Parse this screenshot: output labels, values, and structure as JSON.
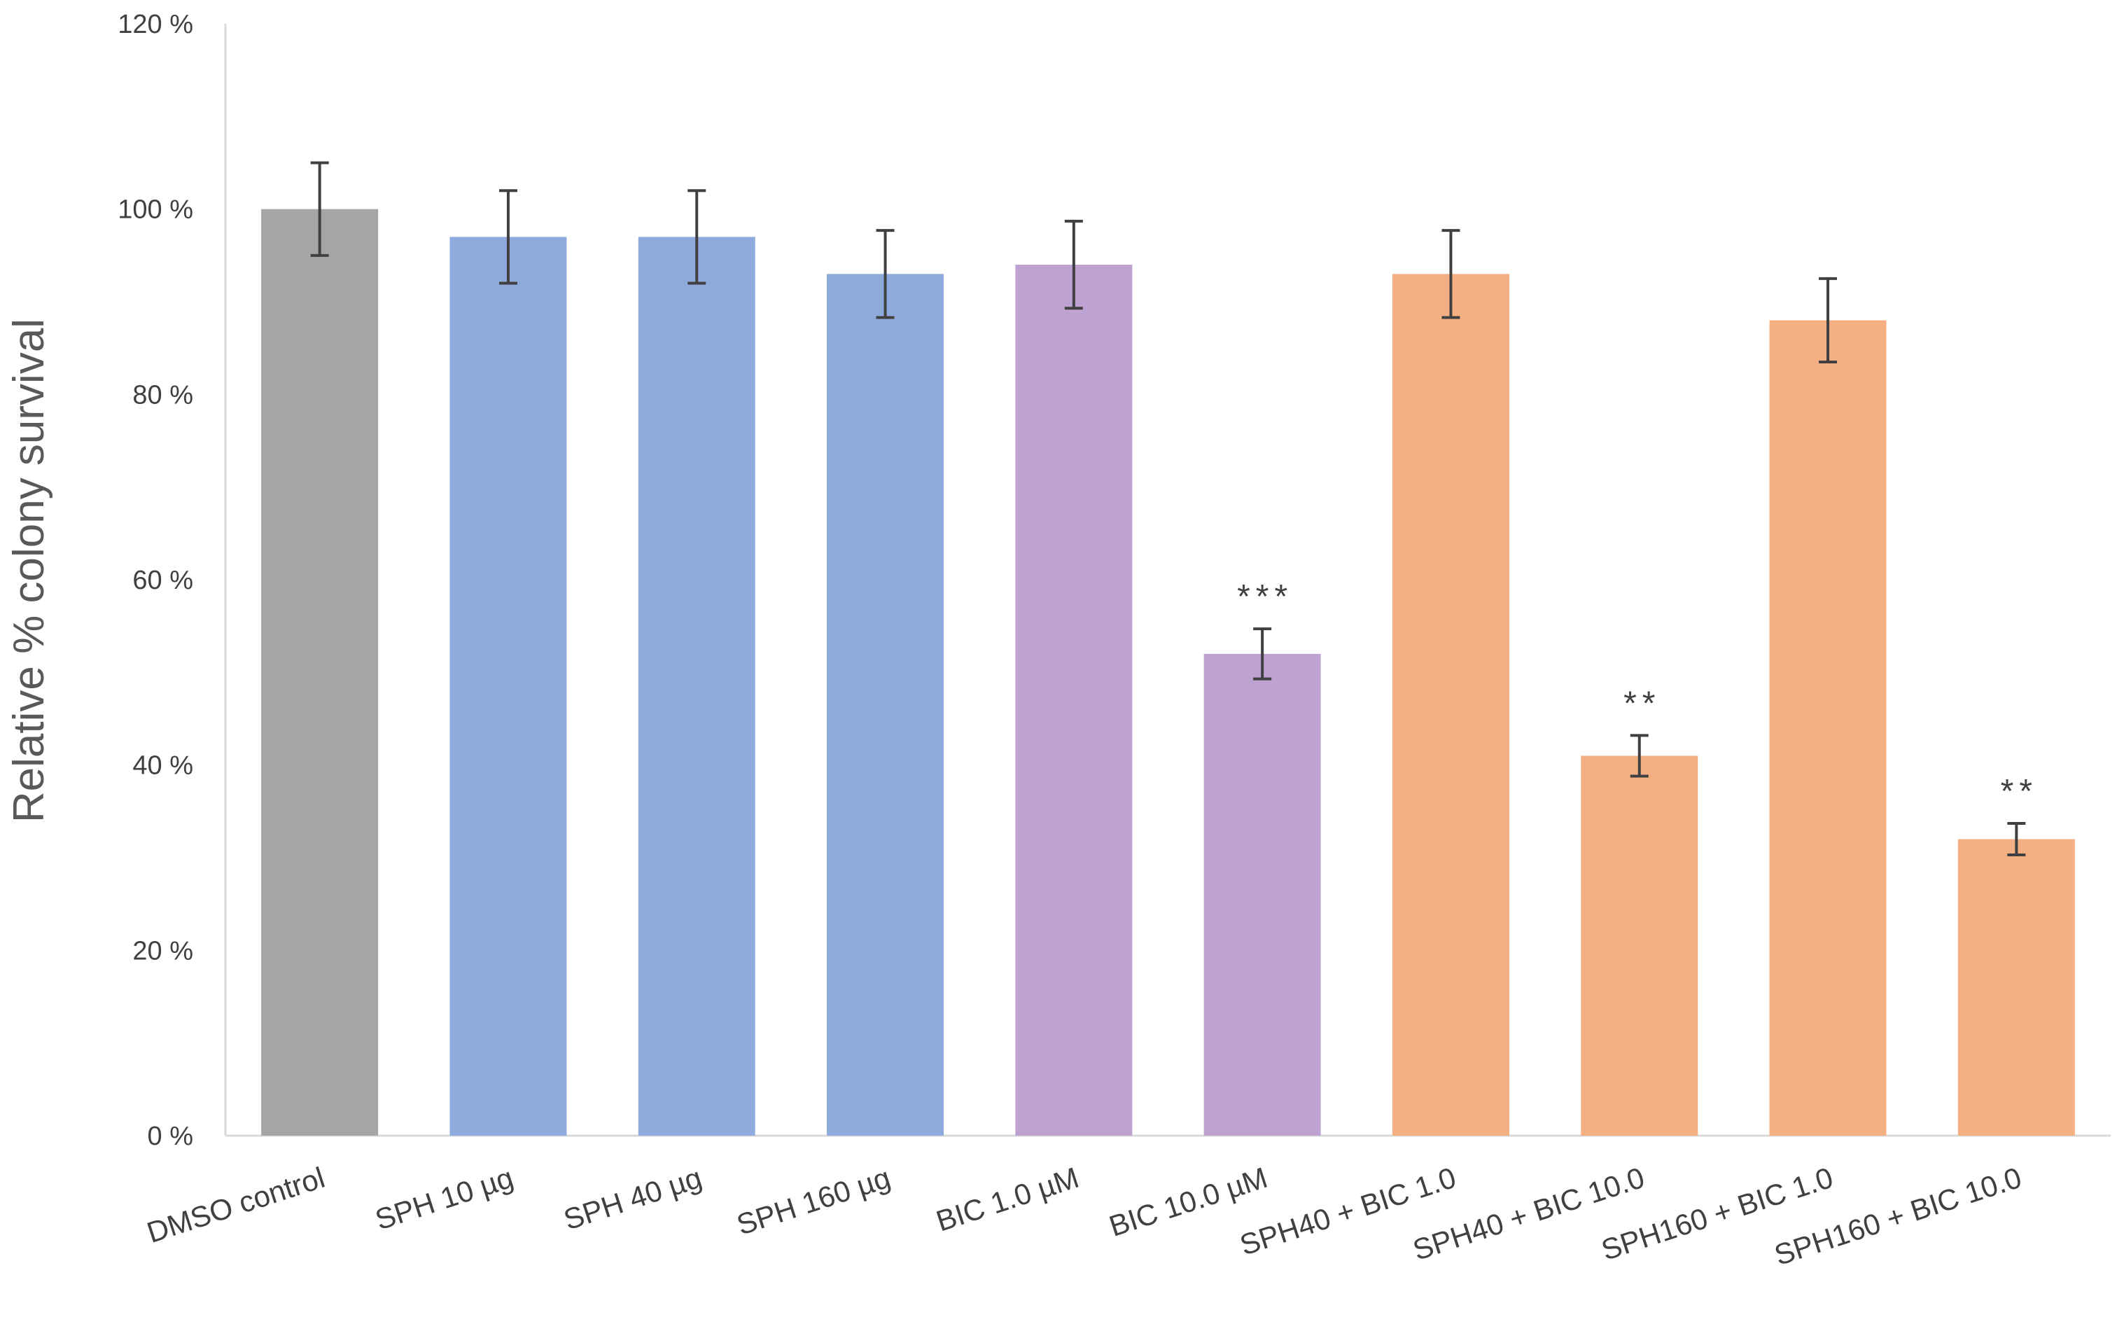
{
  "chart_data": {
    "type": "bar",
    "title": "",
    "xlabel": "",
    "ylabel": "Relative % colony survival",
    "ylim": [
      0,
      120
    ],
    "yticks": [
      {
        "value": 0,
        "label": "0 %"
      },
      {
        "value": 20,
        "label": "20 %"
      },
      {
        "value": 40,
        "label": "40 %"
      },
      {
        "value": 60,
        "label": "60 %"
      },
      {
        "value": 80,
        "label": "80 %"
      },
      {
        "value": 100,
        "label": "100 %"
      },
      {
        "value": 120,
        "label": "120 %"
      }
    ],
    "grid": false,
    "legend": "none",
    "categories": [
      "DMSO control",
      "SPH 10 µg",
      "SPH 40 µg",
      "SPH 160 µg",
      "BIC 1.0 µM",
      "BIC 10.0 µM",
      "SPH40 + BIC 1.0",
      "SPH40 + BIC 10.0",
      "SPH160 + BIC 1.0",
      "SPH160 + BIC 10.0"
    ],
    "values": [
      100,
      97,
      97,
      93,
      94,
      52,
      93,
      41,
      88,
      32
    ],
    "errors": [
      5,
      5,
      5,
      4.7,
      4.7,
      2.7,
      4.7,
      2.2,
      4.5,
      1.7
    ],
    "significance": [
      "",
      "",
      "",
      "",
      "",
      "***",
      "",
      "**",
      "",
      "**"
    ],
    "colors": [
      "#a5a5a5",
      "#8faadc",
      "#8faadc",
      "#8faadc",
      "#bda2d2",
      "#bda2d2",
      "#f4b083",
      "#f4b083",
      "#f4b083",
      "#f4b083"
    ],
    "axis_color": "#d9d9d9",
    "error_bar_color": "#404040"
  }
}
